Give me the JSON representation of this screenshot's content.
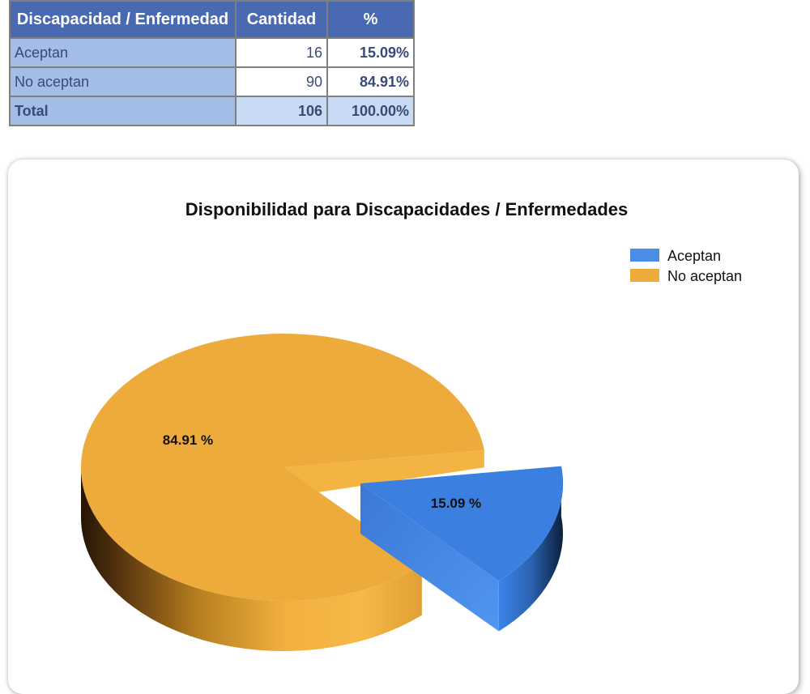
{
  "table": {
    "headers": [
      "Discapacidad / Enfermedad",
      "Cantidad",
      "%"
    ],
    "rows": [
      {
        "label": "Aceptan",
        "count": "16",
        "pct": "15.09%"
      },
      {
        "label": "No aceptan",
        "count": "90",
        "pct": "84.91%"
      }
    ],
    "total": {
      "label": "Total",
      "count": "106",
      "pct": "100.00%"
    }
  },
  "chart_data": {
    "type": "pie",
    "title": "Disponibilidad para Discapacidades / Enfermedades",
    "categories": [
      "Aceptan",
      "No aceptan"
    ],
    "values": [
      16,
      90
    ],
    "percent_labels": [
      "15.09 %",
      "84.91 %"
    ],
    "colors": [
      "#4a8ee8",
      "#edab3c"
    ],
    "legend_position": "top-right",
    "style": "3d-exploded"
  }
}
